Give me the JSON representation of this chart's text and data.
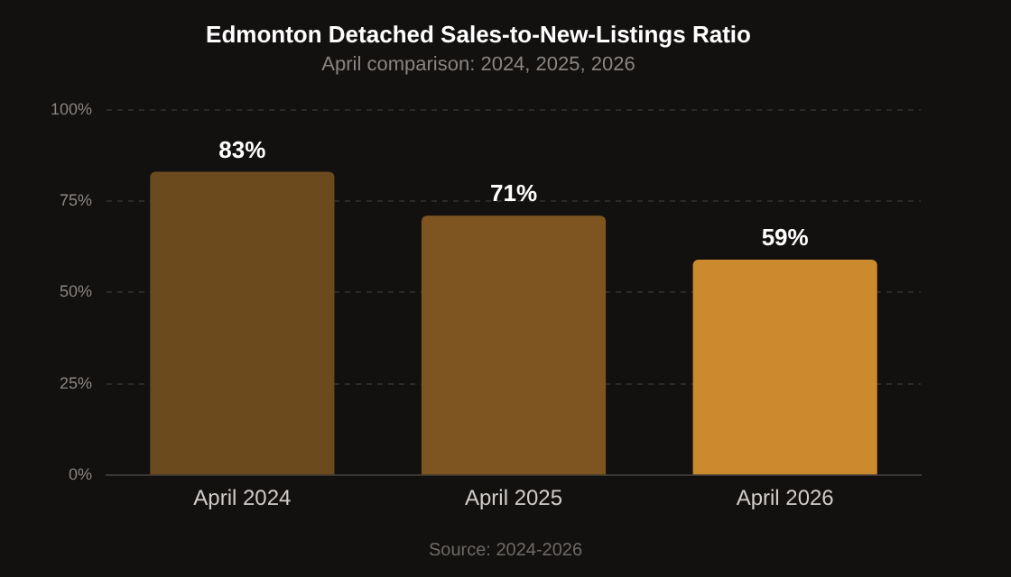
{
  "chart_data": {
    "type": "bar",
    "title": "Edmonton Detached Sales-to-New-Listings Ratio",
    "subtitle": "April comparison: 2024, 2025, 2026",
    "categories": [
      "April 2024",
      "April 2025",
      "April 2026"
    ],
    "values": [
      83,
      71,
      59
    ],
    "colors": [
      "#6b4a1e",
      "#7e5520",
      "#cc8a2e"
    ],
    "value_labels": [
      "83%",
      "71%",
      "59%"
    ],
    "ylim": [
      0,
      100
    ],
    "yticks": [
      {
        "value": 0,
        "label": "0%"
      },
      {
        "value": 25,
        "label": "25%"
      },
      {
        "value": 50,
        "label": "50%"
      },
      {
        "value": 75,
        "label": "75%"
      },
      {
        "value": 100,
        "label": "100%"
      }
    ],
    "grid": "y",
    "annotations": [
      "Source: 2024-2026"
    ]
  }
}
